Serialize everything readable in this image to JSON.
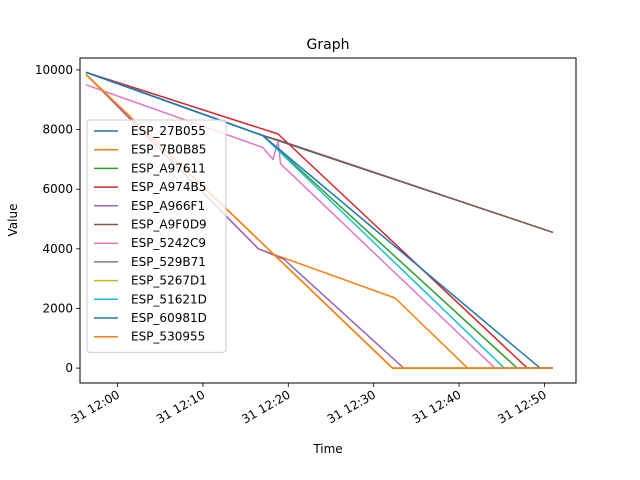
{
  "chart_data": {
    "type": "line",
    "title": "Graph",
    "xlabel": "Time",
    "ylabel": "Value",
    "x_ticks": [
      "31 12:00",
      "31 12:10",
      "31 12:20",
      "31 12:30",
      "31 12:40",
      "31 12:50"
    ],
    "x_tick_minutes": [
      0,
      10,
      20,
      30,
      40,
      50
    ],
    "y_ticks": [
      "0",
      "2000",
      "4000",
      "6000",
      "8000",
      "10000"
    ],
    "y_tick_values": [
      0,
      2000,
      4000,
      6000,
      8000,
      10000
    ],
    "xlim_minutes": [
      -4.4,
      53.7
    ],
    "ylim": [
      -500,
      10400
    ],
    "grid": false,
    "legend_position": "center-left",
    "series": [
      {
        "name": "ESP_27B055",
        "color": "#1f77b4",
        "points": [
          [
            -3.7,
            9920
          ],
          [
            17,
            7800
          ],
          [
            51,
            4550
          ]
        ]
      },
      {
        "name": "ESP_7B0B85",
        "color": "#ff7f0e",
        "points": [
          [
            -3.7,
            9850
          ],
          [
            16.5,
            4000
          ],
          [
            32.5,
            2350
          ],
          [
            41,
            0
          ],
          [
            51,
            0
          ]
        ]
      },
      {
        "name": "ESP_A97611",
        "color": "#2ca02c",
        "points": [
          [
            -3.7,
            9920
          ],
          [
            17,
            7800
          ],
          [
            46.8,
            0
          ],
          [
            51,
            0
          ]
        ]
      },
      {
        "name": "ESP_A974B5",
        "color": "#d62728",
        "points": [
          [
            -3.7,
            9920
          ],
          [
            18.8,
            7850
          ],
          [
            48,
            0
          ],
          [
            51,
            0
          ]
        ]
      },
      {
        "name": "ESP_A966F1",
        "color": "#9467bd",
        "points": [
          [
            -3.7,
            9850
          ],
          [
            16.5,
            4000
          ],
          [
            19.5,
            3650
          ],
          [
            33.5,
            0
          ],
          [
            51,
            0
          ]
        ]
      },
      {
        "name": "ESP_A9F0D9",
        "color": "#8c564b",
        "points": [
          [
            -3.7,
            9920
          ],
          [
            17,
            7800
          ],
          [
            18.8,
            7650
          ],
          [
            51,
            4550
          ]
        ]
      },
      {
        "name": "ESP_5242C9",
        "color": "#e377c2",
        "points": [
          [
            -3.7,
            9500
          ],
          [
            17,
            7400
          ],
          [
            18.2,
            7000
          ],
          [
            18.8,
            7600
          ],
          [
            19.1,
            6850
          ],
          [
            44.2,
            0
          ],
          [
            51,
            0
          ]
        ]
      },
      {
        "name": "ESP_529B71",
        "color": "#7f7f7f",
        "points": [
          [
            -3.7,
            9850
          ],
          [
            32.2,
            0
          ],
          [
            51,
            0
          ]
        ]
      },
      {
        "name": "ESP_5267D1",
        "color": "#bcbd22",
        "points": [
          [
            -3.7,
            9850
          ],
          [
            32.2,
            0
          ],
          [
            51,
            0
          ]
        ]
      },
      {
        "name": "ESP_51621D",
        "color": "#17becf",
        "points": [
          [
            -3.7,
            9920
          ],
          [
            17,
            7800
          ],
          [
            45.3,
            0
          ],
          [
            51,
            0
          ]
        ]
      },
      {
        "name": "ESP_60981D",
        "color": "#1f77b4",
        "points": [
          [
            -3.7,
            9920
          ],
          [
            17,
            7800
          ],
          [
            49.5,
            0
          ],
          [
            51,
            0
          ]
        ]
      },
      {
        "name": "ESP_530955",
        "color": "#ff7f0e",
        "points": [
          [
            -3.7,
            9850
          ],
          [
            32.2,
            0
          ],
          [
            51,
            0
          ]
        ]
      }
    ]
  }
}
